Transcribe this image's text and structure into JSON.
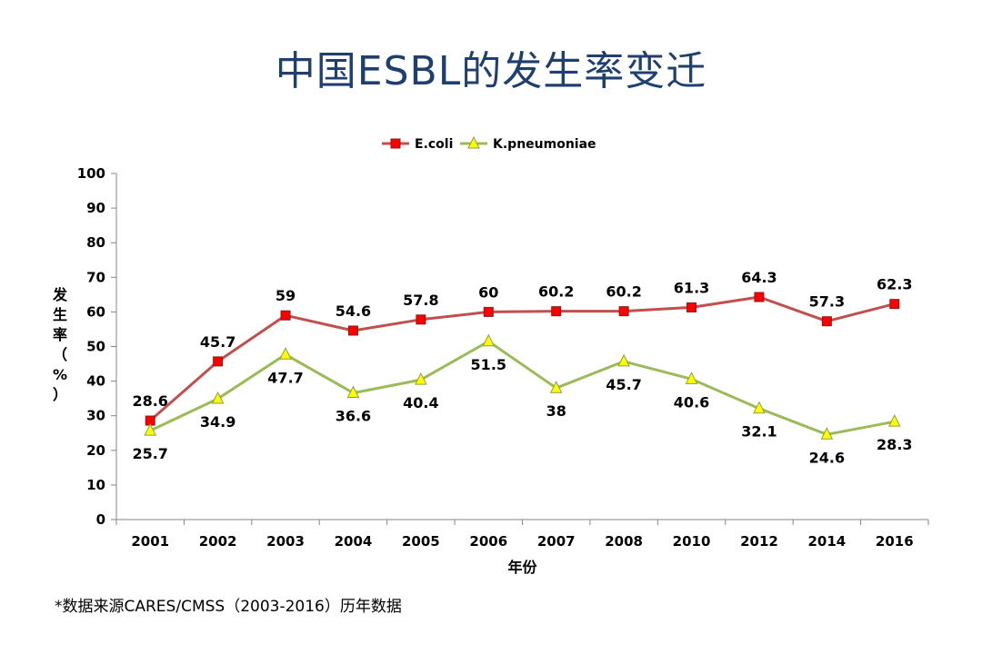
{
  "slide": {
    "title": "中国ESBL的发生率变迁",
    "footnote": "*数据来源CARES/CMSS（2003-2016）历年数据"
  },
  "chart_data": {
    "type": "line",
    "categories": [
      "2001",
      "2002",
      "2003",
      "2004",
      "2005",
      "2006",
      "2007",
      "2008",
      "2010",
      "2012",
      "2014",
      "2016"
    ],
    "series": [
      {
        "name": "E.coli",
        "values": [
          28.6,
          45.7,
          59,
          54.6,
          57.8,
          60,
          60.2,
          60.2,
          61.3,
          64.3,
          57.3,
          62.3
        ],
        "color": "#c0504d",
        "marker": "square",
        "marker_color": "#ff0000",
        "label_position": "above"
      },
      {
        "name": "K.pneumoniae",
        "values": [
          25.7,
          34.9,
          47.7,
          36.6,
          40.4,
          51.5,
          38,
          45.7,
          40.6,
          32.1,
          24.6,
          28.3
        ],
        "color": "#9bbb59",
        "marker": "triangle",
        "marker_color": "#ffff00",
        "label_position": "below"
      }
    ],
    "xlabel": "年份",
    "ylabel": [
      "发",
      "生",
      "率",
      "（",
      "%",
      "）"
    ],
    "ylim": [
      0,
      100
    ],
    "yticks": [
      0,
      10,
      20,
      30,
      40,
      50,
      60,
      70,
      80,
      90,
      100
    ],
    "grid": false,
    "legend": "top-center"
  }
}
